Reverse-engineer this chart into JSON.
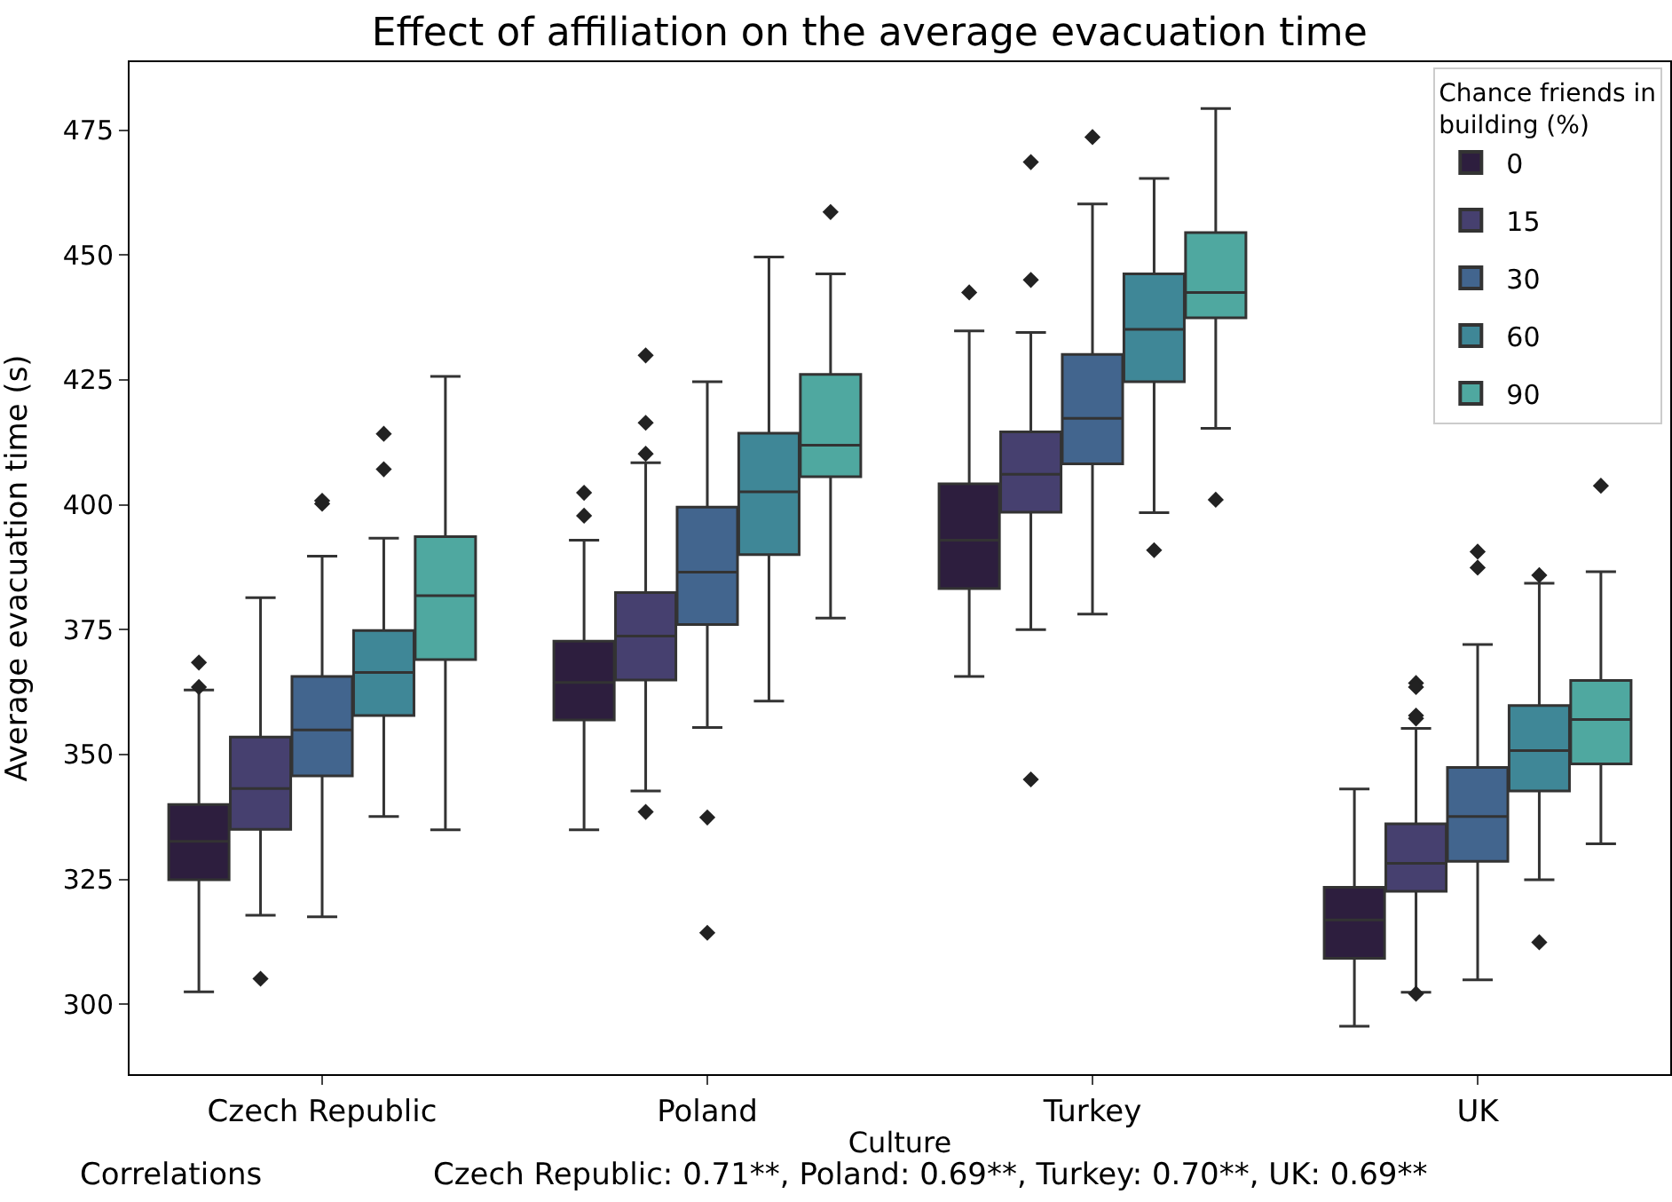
{
  "chart_data": {
    "type": "box",
    "title": "Effect of affiliation on the average evacuation time",
    "xlabel": "Culture",
    "ylabel": "Average evacuation time (s)",
    "legend_title": "Chance friends in building (%)",
    "legend": "top right",
    "marker": "diamond",
    "categories": [
      "Czech Republic",
      "Poland",
      "Turkey",
      "UK"
    ],
    "ylim": [
      286,
      488.6
    ],
    "yticks": [
      300,
      325,
      350,
      375,
      400,
      425,
      450,
      475
    ],
    "annotations": [
      "Correlations",
      "Czech Republic: 0.71**, Poland: 0.69**, Turkey: 0.70**, UK: 0.69**"
    ],
    "series": [
      {
        "name": "0",
        "color": "#2d1e3e",
        "boxes": [
          {
            "low": 302.5,
            "q1": 324.9,
            "median": 332.6,
            "q3": 340.0,
            "high": 362.9,
            "outliers": [
              368.4,
              363.5
            ]
          },
          {
            "low": 334.9,
            "q1": 356.9,
            "median": 364.4,
            "q3": 372.7,
            "high": 392.9,
            "outliers": [
              402.4,
              397.8
            ]
          },
          {
            "low": 365.6,
            "q1": 383.2,
            "median": 392.9,
            "q3": 404.2,
            "high": 434.8,
            "outliers": [
              442.5
            ]
          },
          {
            "low": 295.6,
            "q1": 309.2,
            "median": 316.9,
            "q3": 323.4,
            "high": 343.1
          }
        ]
      },
      {
        "name": "15",
        "color": "#46406f",
        "boxes": [
          {
            "low": 317.8,
            "q1": 335.0,
            "median": 343.2,
            "q3": 353.5,
            "high": 381.4,
            "outliers": [
              305.1
            ]
          },
          {
            "low": 342.7,
            "q1": 364.9,
            "median": 373.7,
            "q3": 382.4,
            "high": 408.4,
            "outliers": [
              429.9,
              416.4,
              410.2,
              338.5
            ]
          },
          {
            "low": 375.0,
            "q1": 398.5,
            "median": 406.1,
            "q3": 414.6,
            "high": 434.5,
            "outliers": [
              468.6,
              445.0,
              345.0
            ]
          },
          {
            "low": 302.4,
            "q1": 322.6,
            "median": 328.2,
            "q3": 336.1,
            "high": 355.2,
            "outliers": [
              364.3,
              363.5,
              357.8,
              357.2,
              302.1
            ]
          }
        ]
      },
      {
        "name": "30",
        "color": "#42658e",
        "boxes": [
          {
            "low": 317.5,
            "q1": 345.7,
            "median": 354.9,
            "q3": 365.6,
            "high": 389.7,
            "outliers": [
              400.2,
              400.8
            ]
          },
          {
            "low": 355.4,
            "q1": 376.0,
            "median": 386.5,
            "q3": 399.5,
            "high": 424.6,
            "outliers": [
              337.4,
              314.3
            ]
          },
          {
            "low": 378.1,
            "q1": 408.2,
            "median": 417.3,
            "q3": 430.1,
            "high": 460.2,
            "outliers": [
              473.6
            ]
          },
          {
            "low": 304.9,
            "q1": 328.6,
            "median": 337.6,
            "q3": 347.4,
            "high": 372.0,
            "outliers": [
              390.6,
              387.4
            ]
          }
        ]
      },
      {
        "name": "60",
        "color": "#3f8797",
        "boxes": [
          {
            "low": 337.6,
            "q1": 357.8,
            "median": 366.4,
            "q3": 374.8,
            "high": 393.3,
            "outliers": [
              414.2,
              407.1
            ]
          },
          {
            "low": 360.7,
            "q1": 390.0,
            "median": 402.6,
            "q3": 414.3,
            "high": 449.6
          },
          {
            "low": 398.4,
            "q1": 424.6,
            "median": 435.1,
            "q3": 446.2,
            "high": 465.3,
            "outliers": [
              390.9
            ]
          },
          {
            "low": 324.9,
            "q1": 342.7,
            "median": 350.8,
            "q3": 359.8,
            "high": 384.3,
            "outliers": [
              385.9,
              312.4
            ]
          }
        ]
      },
      {
        "name": "90",
        "color": "#4fa8a0",
        "boxes": [
          {
            "low": 334.9,
            "q1": 369.0,
            "median": 381.8,
            "q3": 393.6,
            "high": 425.7
          },
          {
            "low": 377.3,
            "q1": 405.6,
            "median": 411.9,
            "q3": 426.1,
            "high": 446.2,
            "outliers": [
              458.6
            ]
          },
          {
            "low": 415.3,
            "q1": 437.4,
            "median": 442.5,
            "q3": 454.5,
            "high": 479.3,
            "outliers": [
              401.0
            ]
          },
          {
            "low": 332.1,
            "q1": 348.1,
            "median": 357.0,
            "q3": 364.8,
            "high": 386.6,
            "outliers": [
              403.8
            ]
          }
        ]
      }
    ]
  }
}
